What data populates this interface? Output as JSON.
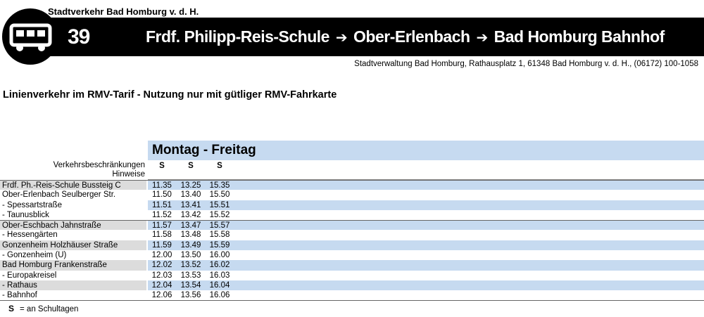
{
  "header": {
    "operator": "Stadtverkehr Bad Homburg v. d. H.",
    "line_number": "39",
    "route": [
      "Frdf. Philipp-Reis-Schule",
      "Ober-Erlenbach",
      "Bad Homburg Bahnhof"
    ],
    "arrow": "➔",
    "address": "Stadtverwaltung Bad Homburg, Rathausplatz 1, 61348 Bad Homburg v. d. H., (06172) 100-1058",
    "bus_icon": "bus-icon"
  },
  "tariff_note": "Linienverkehr im RMV-Tarif - Nutzung nur mit gütliger RMV-Fahrkarte",
  "timetable": {
    "day": "Montag - Freitag",
    "restrictions_label": "Verkehrsbeschränkungen",
    "notes_label": "Hinweise",
    "restrictions": [
      "S",
      "S",
      "S"
    ],
    "stops": [
      {
        "name": "Frdf. Ph.-Reis-Schule Bussteig C",
        "times": [
          "11.35",
          "13.25",
          "15.35"
        ]
      },
      {
        "name": "Ober-Erlenbach Seulberger Str.",
        "times": [
          "11.50",
          "13.40",
          "15.50"
        ]
      },
      {
        "name": "- Spessartstraße",
        "times": [
          "11.51",
          "13.41",
          "15.51"
        ]
      },
      {
        "name": "- Taunusblick",
        "times": [
          "11.52",
          "13.42",
          "15.52"
        ]
      },
      {
        "name": "Ober-Eschbach Jahnstraße",
        "times": [
          "11.57",
          "13.47",
          "15.57"
        ]
      },
      {
        "name": "- Hessengärten",
        "times": [
          "11.58",
          "13.48",
          "15.58"
        ]
      },
      {
        "name": "Gonzenheim Holzhäuser Straße",
        "times": [
          "11.59",
          "13.49",
          "15.59"
        ]
      },
      {
        "name": "- Gonzenheim (U)",
        "times": [
          "12.00",
          "13.50",
          "16.00"
        ]
      },
      {
        "name": "Bad Homburg Frankenstraße",
        "times": [
          "12.02",
          "13.52",
          "16.02"
        ]
      },
      {
        "name": "- Europakreisel",
        "times": [
          "12.03",
          "13.53",
          "16.03"
        ]
      },
      {
        "name": "- Rathaus",
        "times": [
          "12.04",
          "13.54",
          "16.04"
        ]
      },
      {
        "name": "- Bahnhof",
        "times": [
          "12.06",
          "13.56",
          "16.06"
        ]
      }
    ]
  },
  "legend": {
    "symbol": "S",
    "text": "= an Schultagen"
  },
  "colors": {
    "header_bg": "#000000",
    "row_shade": "#c6daf0",
    "stop_shade": "#dcdcdc"
  }
}
